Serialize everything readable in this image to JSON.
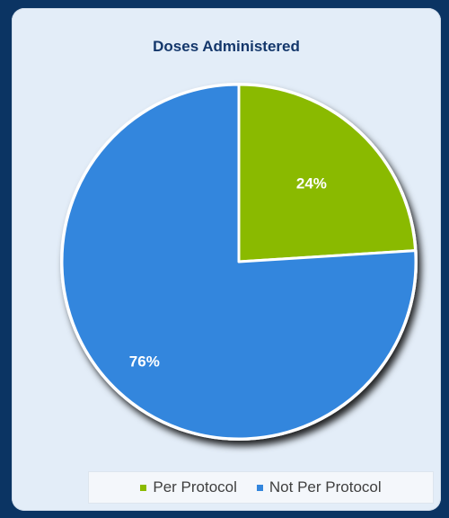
{
  "chart_data": {
    "type": "pie",
    "title": "Doses Administered",
    "slices": [
      {
        "label": "Per Protocol",
        "value": 24,
        "data_label": "24%",
        "color": "#8aba00"
      },
      {
        "label": "Not Per Protocol",
        "value": 76,
        "data_label": "76%",
        "color": "#3386dd"
      }
    ],
    "start_angle_deg": 0,
    "direction": "clockwise",
    "legend_position": "bottom",
    "slice_border_color": "#ffffff"
  },
  "legend": {
    "items": [
      {
        "label": "Per Protocol",
        "color": "#8aba00"
      },
      {
        "label": "Not Per Protocol",
        "color": "#3386dd"
      }
    ]
  }
}
